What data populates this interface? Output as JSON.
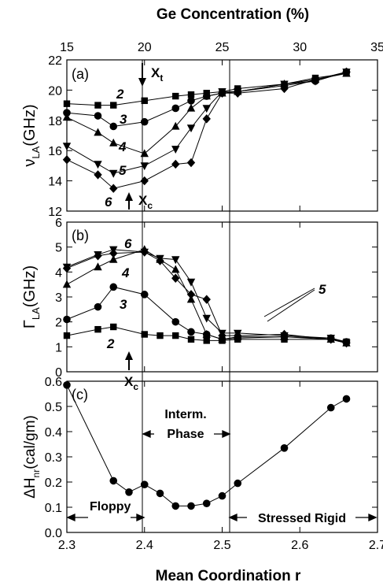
{
  "figure": {
    "top_axis_title": "Ge Concentration (%)",
    "bottom_axis_title": "Mean Coordination r",
    "top_ticks": [
      "15",
      "20",
      "25",
      "30",
      "35"
    ],
    "bottom_ticks": [
      "2.3",
      "2.4",
      "2.5",
      "2.6",
      "2.7"
    ]
  },
  "chart_data": [
    {
      "type": "line",
      "panel_label": "(a)",
      "ylabel": "νLA(GHz)",
      "ylabel_main": "ν",
      "ylabel_sub": "LA",
      "ylabel_unit": "(GHz)",
      "xlim": [
        15,
        35
      ],
      "ylim": [
        12,
        22
      ],
      "yticks": [
        "12",
        "14",
        "16",
        "18",
        "20",
        "22"
      ],
      "annotations": {
        "xt_main": "X",
        "xt_sub": "t",
        "xc_main": "X",
        "xc_sub": "c"
      },
      "series": [
        {
          "name": "2",
          "marker": "square",
          "x": [
            15,
            17,
            18,
            20,
            22,
            23,
            24,
            25,
            26,
            29,
            31,
            33
          ],
          "y": [
            19.1,
            19.0,
            19.0,
            19.3,
            19.6,
            19.7,
            19.8,
            19.9,
            20.1,
            20.4,
            20.8,
            21.1
          ]
        },
        {
          "name": "3",
          "marker": "circle",
          "x": [
            15,
            17,
            18,
            20,
            22,
            23,
            24,
            25,
            26,
            29,
            31,
            33
          ],
          "y": [
            18.5,
            18.3,
            17.6,
            17.9,
            18.8,
            19.3,
            19.6,
            19.8,
            19.9,
            20.3,
            20.6,
            21.2
          ]
        },
        {
          "name": "4",
          "marker": "triangle",
          "x": [
            15,
            17,
            18,
            20,
            22,
            23,
            24,
            25,
            26,
            29,
            31,
            33
          ],
          "y": [
            18.2,
            17.2,
            16.5,
            15.8,
            17.6,
            18.8,
            19.6,
            19.8,
            19.9,
            20.4,
            20.7,
            21.1
          ]
        },
        {
          "name": "5",
          "marker": "invtriangle",
          "x": [
            15,
            17,
            18,
            20,
            22,
            23,
            24,
            25,
            26,
            29,
            31,
            33
          ],
          "y": [
            16.3,
            15.1,
            14.5,
            15.0,
            16.1,
            17.5,
            18.8,
            19.9,
            19.9,
            20.4,
            20.6,
            21.2
          ]
        },
        {
          "name": "6",
          "marker": "diamond",
          "x": [
            15,
            17,
            18,
            20,
            22,
            23,
            24,
            25,
            26,
            29,
            31,
            33
          ],
          "y": [
            15.4,
            14.4,
            13.5,
            14.0,
            15.1,
            15.2,
            18.1,
            19.8,
            19.8,
            20.1,
            20.7,
            21.2
          ]
        }
      ]
    },
    {
      "type": "line",
      "panel_label": "(b)",
      "ylabel": "ΓLA(GHz)",
      "ylabel_main": "Γ",
      "ylabel_sub": "LA",
      "ylabel_unit": "(GHz)",
      "xlim": [
        15,
        35
      ],
      "ylim": [
        0,
        6
      ],
      "yticks": [
        "0",
        "1",
        "2",
        "3",
        "4",
        "5",
        "6"
      ],
      "annotations": {
        "xc_main": "X",
        "xc_sub": "c",
        "series5_label": "5"
      },
      "series": [
        {
          "name": "2",
          "marker": "square",
          "x": [
            15,
            17,
            18,
            20,
            21,
            22,
            23,
            24,
            25,
            26,
            29,
            32,
            33
          ],
          "y": [
            1.45,
            1.7,
            1.8,
            1.5,
            1.45,
            1.45,
            1.3,
            1.25,
            1.25,
            1.3,
            1.3,
            1.3,
            1.2
          ]
        },
        {
          "name": "3",
          "marker": "circle",
          "x": [
            15,
            17,
            18,
            20,
            22,
            23,
            24,
            25,
            26,
            29,
            32,
            33
          ],
          "y": [
            2.1,
            2.6,
            3.4,
            3.1,
            2.0,
            1.6,
            1.5,
            1.3,
            1.35,
            1.4,
            1.35,
            1.2
          ]
        },
        {
          "name": "4",
          "marker": "triangle",
          "x": [
            15,
            17,
            18,
            20,
            21,
            22,
            23,
            24,
            25,
            26,
            29,
            32,
            33
          ],
          "y": [
            3.5,
            4.2,
            4.5,
            4.9,
            4.5,
            4.1,
            2.9,
            1.5,
            1.3,
            1.4,
            1.4,
            1.3,
            1.15
          ]
        },
        {
          "name": "5",
          "marker": "invtriangle",
          "x": [
            15,
            17,
            18,
            20,
            21,
            22,
            23,
            24,
            25,
            26,
            29,
            32,
            33
          ],
          "y": [
            4.2,
            4.7,
            4.9,
            4.8,
            4.55,
            4.5,
            3.6,
            2.15,
            1.55,
            1.55,
            1.45,
            1.35,
            1.15
          ]
        },
        {
          "name": "6",
          "marker": "diamond",
          "x": [
            15,
            17,
            18,
            20,
            21,
            22,
            23,
            24,
            25,
            26,
            29,
            32,
            33
          ],
          "y": [
            4.15,
            4.65,
            4.75,
            4.8,
            4.45,
            3.75,
            3.1,
            2.9,
            1.45,
            1.45,
            1.5,
            1.3,
            1.15
          ]
        }
      ]
    },
    {
      "type": "line",
      "panel_label": "(c)",
      "ylabel": "ΔHnr(cal/gm)",
      "ylabel_main": "ΔH",
      "ylabel_sub": "nr",
      "ylabel_unit": "(cal/gm)",
      "xlim": [
        2.3,
        2.7
      ],
      "ylim": [
        0.0,
        0.6
      ],
      "yticks": [
        "0.0",
        "0.1",
        "0.2",
        "0.3",
        "0.4",
        "0.5",
        "0.6"
      ],
      "phase_labels": [
        "Floppy",
        "Interm.",
        "Phase",
        "Stressed Rigid"
      ],
      "series": [
        {
          "name": "",
          "marker": "circle",
          "x": [
            2.3,
            2.36,
            2.38,
            2.4,
            2.42,
            2.44,
            2.46,
            2.48,
            2.5,
            2.52,
            2.58,
            2.64,
            2.66
          ],
          "y": [
            0.585,
            0.205,
            0.16,
            0.19,
            0.155,
            0.105,
            0.105,
            0.115,
            0.145,
            0.195,
            0.335,
            0.495,
            0.53
          ]
        }
      ]
    }
  ]
}
